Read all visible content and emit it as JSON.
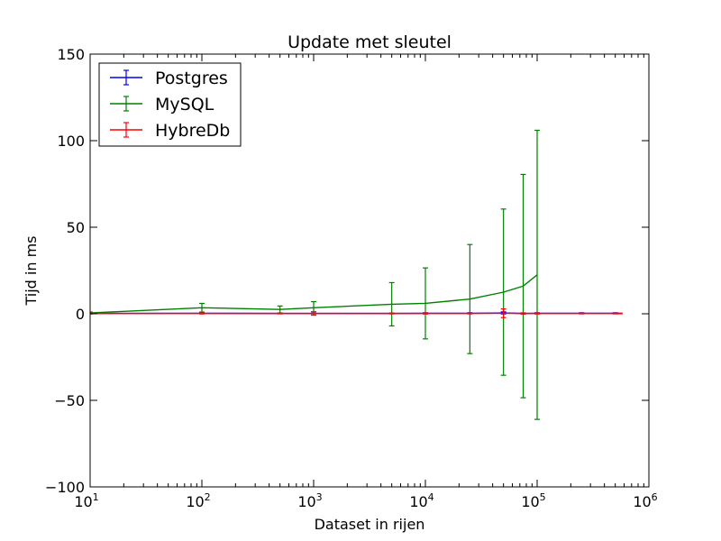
{
  "chart_data": {
    "type": "line",
    "title": "Update met sleutel",
    "xlabel": "Dataset in rijen",
    "ylabel": "Tijd in ms",
    "xscale": "log",
    "xlim": [
      10,
      1000000
    ],
    "ylim": [
      -100,
      150
    ],
    "x_ticks": [
      {
        "value": 10,
        "base": "10",
        "exp": "1"
      },
      {
        "value": 100,
        "base": "10",
        "exp": "2"
      },
      {
        "value": 1000,
        "base": "10",
        "exp": "3"
      },
      {
        "value": 10000,
        "base": "10",
        "exp": "4"
      },
      {
        "value": 100000,
        "base": "10",
        "exp": "5"
      },
      {
        "value": 1000000,
        "base": "10",
        "exp": "6"
      }
    ],
    "y_ticks": [
      -100,
      -50,
      0,
      50,
      100,
      150
    ],
    "grid": false,
    "legend_position": "top-left",
    "series": [
      {
        "name": "Postgres",
        "color": "#0000ff",
        "x": [
          10,
          100,
          500,
          1000,
          5000,
          10000,
          25000,
          50000,
          75000,
          100000,
          250000,
          500000
        ],
        "y": [
          0.2,
          0.3,
          0.2,
          0.2,
          0.2,
          0.3,
          0.3,
          0.5,
          0.2,
          0.3,
          0.3,
          0.3
        ],
        "err": [
          0.2,
          0.2,
          0.2,
          0.2,
          0.2,
          0.3,
          0.3,
          0.6,
          0.3,
          0.3,
          0.3,
          0.3
        ]
      },
      {
        "name": "MySQL",
        "color": "#008000",
        "x": [
          10,
          100,
          500,
          1000,
          5000,
          10000,
          25000,
          50000,
          75000,
          100000
        ],
        "y": [
          0.5,
          3.5,
          2.5,
          3.5,
          5.5,
          6.0,
          8.5,
          12.5,
          16.0,
          22.5
        ],
        "err": [
          0.5,
          2.5,
          2.0,
          3.5,
          12.5,
          20.5,
          31.5,
          48.0,
          64.5,
          83.5
        ]
      },
      {
        "name": "HybreDb",
        "color": "#ff0000",
        "x": [
          10,
          100,
          500,
          1000,
          5000,
          10000,
          25000,
          50000,
          75000,
          100000,
          250000,
          500000,
          550000
        ],
        "y": [
          0.2,
          0.2,
          0.2,
          0.2,
          0.2,
          0.2,
          0.2,
          0.3,
          0.2,
          0.2,
          0.2,
          0.2,
          0.2
        ],
        "err": [
          0.2,
          0.3,
          0.2,
          1.0,
          0.2,
          0.3,
          0.2,
          2.5,
          0.3,
          0.3,
          0.2,
          0.2,
          0.2
        ]
      }
    ]
  }
}
